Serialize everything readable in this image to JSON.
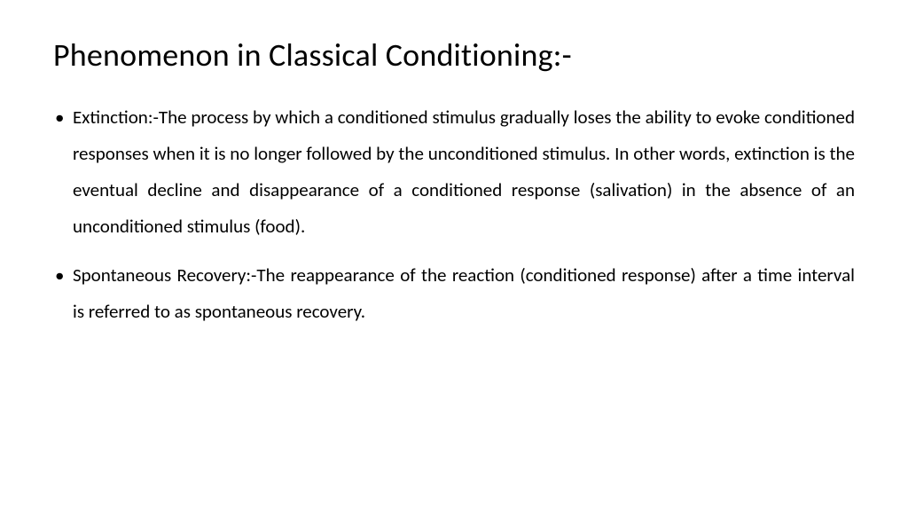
{
  "slide": {
    "title": "Phenomenon in Classical Conditioning:-",
    "title_fontsize": 36,
    "title_color": "#000000",
    "body_fontsize": 21,
    "body_color": "#000000",
    "line_height": 1.95,
    "text_align": "justify",
    "background_color": "#ffffff",
    "bullets": [
      "Extinction:-The process by which a conditioned stimulus gradually loses the ability to evoke conditioned responses when it is no longer followed by the unconditioned stimulus. In other words, extinction is the eventual decline and disappearance of a conditioned response (salivation) in the absence of an unconditioned stimulus (food).",
      "Spontaneous Recovery:-The reappearance of the reaction (conditioned response) after a time interval is referred to as spontaneous recovery."
    ]
  }
}
